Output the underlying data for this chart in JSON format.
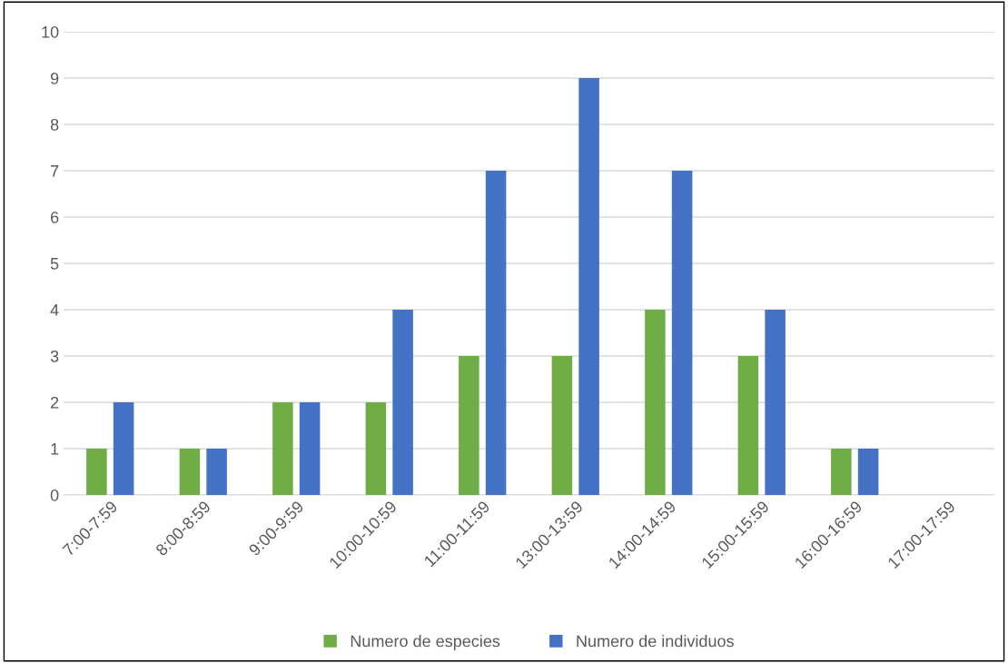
{
  "chart_data": {
    "type": "bar",
    "categories": [
      "7:00-7:59",
      "8:00-8:59",
      "9:00-9:59",
      "10:00-10:59",
      "11:00-11:59",
      "13:00-13:59",
      "14:00-14:59",
      "15:00-15:59",
      "16:00-16:59",
      "17:00-17:59"
    ],
    "series": [
      {
        "name": "Numero de especies",
        "color": "#70ad47",
        "values": [
          1,
          1,
          2,
          2,
          3,
          3,
          4,
          3,
          1,
          0
        ]
      },
      {
        "name": "Numero de individuos",
        "color": "#4472c4",
        "values": [
          2,
          1,
          2,
          4,
          7,
          9,
          7,
          4,
          1,
          0
        ]
      }
    ],
    "ylim": [
      0,
      10
    ],
    "yticks": [
      0,
      1,
      2,
      3,
      4,
      5,
      6,
      7,
      8,
      9,
      10
    ],
    "grid": "y",
    "legend": "bottom"
  }
}
